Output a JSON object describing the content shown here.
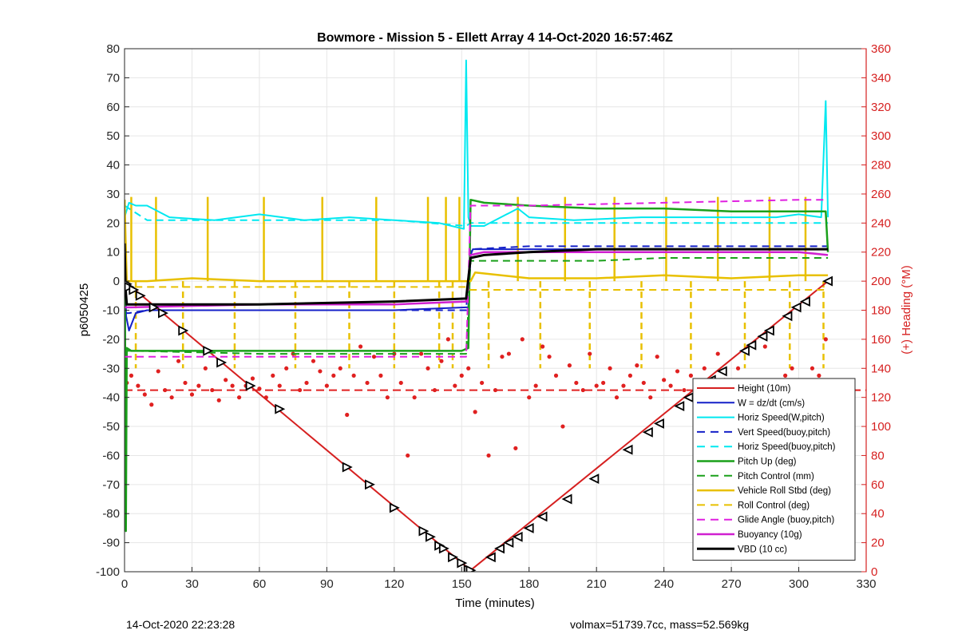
{
  "chart_data": {
    "type": "line",
    "title": "Bowmore - Mission 5 - Ellett Array 4 14-Oct-2020 16:57:46Z",
    "xlabel": "Time (minutes)",
    "ylabel": "p6050425",
    "y2label": "(+) Heading (°M)",
    "xlim": [
      0,
      330
    ],
    "ylim": [
      -100,
      80
    ],
    "y2lim": [
      0,
      360
    ],
    "xticks": [
      "0",
      "30",
      "60",
      "90",
      "120",
      "150",
      "180",
      "210",
      "240",
      "270",
      "300",
      "330"
    ],
    "yticks": [
      "-100",
      "-90",
      "-80",
      "-70",
      "-60",
      "-50",
      "-40",
      "-30",
      "-20",
      "-10",
      "0",
      "10",
      "20",
      "30",
      "40",
      "50",
      "60",
      "70",
      "80"
    ],
    "y2ticks": [
      "0",
      "20",
      "40",
      "60",
      "80",
      "100",
      "120",
      "140",
      "160",
      "180",
      "200",
      "220",
      "240",
      "260",
      "280",
      "300",
      "320",
      "340",
      "360"
    ],
    "grid": true,
    "legend_position": "lower-right",
    "colors": {
      "axis_right": "#d62020",
      "height": "#d62020",
      "heading": "#e02020",
      "w": "#1420c8",
      "horiz": "#00e8f0",
      "pitch": "#1aa01a",
      "roll": "#e8c000",
      "glide": "#e020e0",
      "buoy": "#d020d0",
      "vbd": "#000000"
    },
    "series": [
      {
        "name": "Height (10m)",
        "color": "#d62020",
        "dash": false,
        "width": 2,
        "x": [
          0,
          154,
          313
        ],
        "y": [
          0,
          -99.5,
          0
        ]
      },
      {
        "name": "W = dz/dt (cm/s)",
        "color": "#1420c8",
        "dash": false,
        "width": 2,
        "x": [
          0,
          0.7,
          2,
          5,
          10,
          30,
          60,
          90,
          120,
          152,
          153,
          154,
          155,
          160,
          180,
          210,
          240,
          270,
          300,
          313
        ],
        "y": [
          13,
          -12,
          -17,
          -11,
          -10,
          -10,
          -10,
          -10,
          -10,
          -9,
          -9,
          9,
          11,
          11,
          11,
          11,
          11,
          11,
          11,
          11
        ]
      },
      {
        "name": "Horiz Speed(W,pitch)",
        "color": "#00e8f0",
        "dash": false,
        "width": 2,
        "x": [
          0,
          2,
          5,
          10,
          20,
          40,
          60,
          80,
          100,
          120,
          140,
          151,
          152,
          153,
          154,
          160,
          175,
          180,
          200,
          230,
          260,
          290,
          300,
          310,
          312,
          313
        ],
        "y": [
          22,
          27,
          26,
          26,
          22,
          21,
          23,
          21,
          22,
          21,
          20,
          18,
          76,
          22,
          19,
          19,
          25,
          22,
          21,
          22,
          22,
          22,
          23,
          22,
          62,
          22
        ]
      },
      {
        "name": "Vert Speed(buoy,pitch)",
        "color": "#1420c8",
        "dash": true,
        "width": 2,
        "x": [
          0,
          2,
          10,
          60,
          120,
          152,
          154,
          180,
          240,
          300,
          313
        ],
        "y": [
          -11,
          -11,
          -10,
          -10,
          -10,
          -10,
          11,
          12,
          12,
          12,
          12
        ]
      },
      {
        "name": "Horiz Speed(buoy,pitch)",
        "color": "#00e8f0",
        "dash": true,
        "width": 2,
        "x": [
          0,
          10,
          60,
          120,
          152,
          154,
          180,
          240,
          300,
          313
        ],
        "y": [
          26,
          21,
          21,
          21,
          19,
          20,
          20,
          20,
          20,
          20
        ]
      },
      {
        "name": "Pitch Up (deg)",
        "color": "#1aa01a",
        "dash": false,
        "width": 2.5,
        "x": [
          0,
          0.6,
          1,
          3,
          10,
          30,
          60,
          90,
          120,
          150,
          153,
          154,
          160,
          180,
          210,
          240,
          270,
          300,
          312,
          313
        ],
        "y": [
          28,
          -86,
          -23,
          -24,
          -24,
          -24,
          -24,
          -24,
          -24,
          -24,
          -23,
          28,
          27,
          26,
          25,
          25,
          24,
          24,
          24,
          10
        ]
      },
      {
        "name": "Pitch Control (mm)",
        "color": "#1aa01a",
        "dash": true,
        "width": 2,
        "x": [
          0,
          5,
          60,
          120,
          152,
          154,
          180,
          210,
          240,
          270,
          300,
          313
        ],
        "y": [
          -24,
          -24,
          -25,
          -25,
          -25,
          7,
          7,
          7,
          8,
          8,
          8,
          8
        ]
      },
      {
        "name": "Vehicle Roll Stbd (deg)",
        "color": "#e8c000",
        "dash": false,
        "width": 2.5,
        "x": [
          0,
          1,
          2,
          10,
          30,
          60,
          90,
          120,
          152,
          154,
          156,
          180,
          210,
          240,
          270,
          300,
          313
        ],
        "y": [
          28,
          0,
          0,
          0,
          1,
          0,
          0,
          0,
          0,
          0,
          3,
          1,
          1,
          2,
          1,
          2,
          2
        ]
      },
      {
        "name": "Roll Control (deg)",
        "color": "#e8c000",
        "dash": true,
        "width": 2,
        "x": [
          0,
          5,
          60,
          120,
          152,
          154,
          180,
          240,
          300,
          313
        ],
        "y": [
          0,
          -2,
          -2,
          -2,
          -2,
          -3,
          -3,
          -3,
          -3,
          -3
        ]
      },
      {
        "name": "Glide Angle (buoy,pitch)",
        "color": "#e020e0",
        "dash": true,
        "width": 2,
        "x": [
          0,
          2,
          60,
          120,
          152,
          154,
          180,
          240,
          300,
          313
        ],
        "y": [
          -26,
          -26,
          -26,
          -26,
          -26,
          26,
          26,
          27,
          28,
          28
        ]
      },
      {
        "name": "Buoyancy (10g)",
        "color": "#d020d0",
        "dash": false,
        "width": 2.5,
        "x": [
          0,
          3,
          60,
          120,
          152,
          154,
          160,
          200,
          240,
          280,
          300,
          313
        ],
        "y": [
          -9,
          -9,
          -8,
          -8,
          -7,
          9,
          10,
          10,
          10,
          10,
          10,
          9
        ]
      },
      {
        "name": "VBD (10 cc)",
        "color": "#000000",
        "dash": false,
        "width": 3,
        "x": [
          0,
          0.5,
          1,
          3,
          60,
          120,
          152,
          154,
          160,
          180,
          210,
          240,
          270,
          300,
          313
        ],
        "y": [
          13,
          -3,
          -8,
          -8,
          -8,
          -7,
          -6,
          8,
          9,
          10,
          11,
          11,
          11,
          11,
          11
        ]
      }
    ],
    "roll_spikes": {
      "x": [
        3,
        5,
        14,
        26,
        37,
        49,
        62,
        76,
        88,
        100,
        112,
        120,
        135,
        140,
        143,
        146,
        149,
        162,
        175,
        185,
        196,
        207,
        218,
        230,
        241,
        252,
        264,
        276,
        287,
        296,
        303,
        311
      ],
      "y": [
        29,
        -30,
        29,
        -30,
        29,
        -30,
        29,
        -30,
        29,
        -30,
        29,
        -30,
        29,
        -30,
        29,
        -30,
        29,
        -30,
        29,
        -30,
        29,
        -30,
        29,
        -30,
        29,
        -30,
        29,
        -30,
        29,
        -30,
        29,
        -30
      ]
    },
    "heading": {
      "name": "Heading",
      "color": "#e02020",
      "reference": 125,
      "x": [
        1,
        3,
        6,
        9,
        12,
        15,
        18,
        21,
        24,
        27,
        30,
        33,
        36,
        39,
        42,
        45,
        48,
        51,
        54,
        57,
        60,
        63,
        66,
        69,
        72,
        75,
        78,
        81,
        84,
        87,
        90,
        93,
        96,
        99,
        102,
        105,
        108,
        111,
        114,
        117,
        120,
        123,
        126,
        129,
        132,
        135,
        138,
        141,
        144,
        147,
        150,
        153,
        156,
        159,
        162,
        165,
        168,
        171,
        174,
        177,
        180,
        183,
        186,
        189,
        192,
        195,
        198,
        201,
        204,
        207,
        210,
        213,
        216,
        219,
        222,
        225,
        228,
        231,
        234,
        237,
        240,
        243,
        246,
        249,
        252,
        255,
        258,
        261,
        264,
        267,
        270,
        273,
        276,
        279,
        282,
        285,
        288,
        291,
        294,
        297,
        300,
        303,
        306,
        309,
        312
      ],
      "y": [
        130,
        135,
        128,
        122,
        115,
        138,
        125,
        120,
        145,
        130,
        122,
        128,
        140,
        125,
        118,
        132,
        128,
        120,
        128,
        133,
        126,
        120,
        135,
        128,
        140,
        150,
        125,
        130,
        145,
        138,
        128,
        135,
        140,
        108,
        135,
        155,
        130,
        148,
        135,
        120,
        150,
        130,
        80,
        120,
        150,
        140,
        125,
        145,
        160,
        128,
        135,
        140,
        110,
        130,
        80,
        125,
        148,
        150,
        85,
        160,
        120,
        128,
        155,
        148,
        135,
        100,
        142,
        130,
        125,
        150,
        128,
        130,
        140,
        120,
        128,
        135,
        142,
        130,
        120,
        148,
        132,
        128,
        138,
        125,
        135,
        130,
        140,
        120,
        150,
        132,
        120,
        140,
        128,
        110,
        125,
        155,
        130,
        120,
        135,
        140,
        120,
        128,
        140,
        135,
        160
      ]
    },
    "height_markers": {
      "x": [
        1,
        2,
        4,
        7,
        13,
        17,
        26,
        37,
        43,
        56,
        69,
        99,
        109,
        120,
        133,
        136,
        140,
        142,
        146,
        150,
        153,
        154,
        163,
        167,
        171,
        175,
        180,
        186,
        197,
        209,
        224,
        233,
        238,
        247,
        251,
        261,
        266,
        276,
        279,
        284,
        287,
        295,
        299,
        303,
        313
      ],
      "y": [
        -1,
        -2,
        -3,
        -5,
        -9,
        -11,
        -17,
        -24,
        -28,
        -36,
        -44,
        -64,
        -70,
        -78,
        -86,
        -88,
        -91,
        -92,
        -95,
        -97,
        -99.3,
        -99.5,
        -95,
        -92,
        -90,
        -88,
        -85,
        -81,
        -75,
        -68,
        -58,
        -52,
        -49,
        -43,
        -40,
        -34,
        -31,
        -24,
        -22,
        -19,
        -17,
        -12,
        -9,
        -7,
        0
      ]
    }
  },
  "footer": {
    "timestamp": "14-Oct-2020 22:23:28",
    "summary": "volmax=51739.7cc, mass=52.569kg"
  }
}
